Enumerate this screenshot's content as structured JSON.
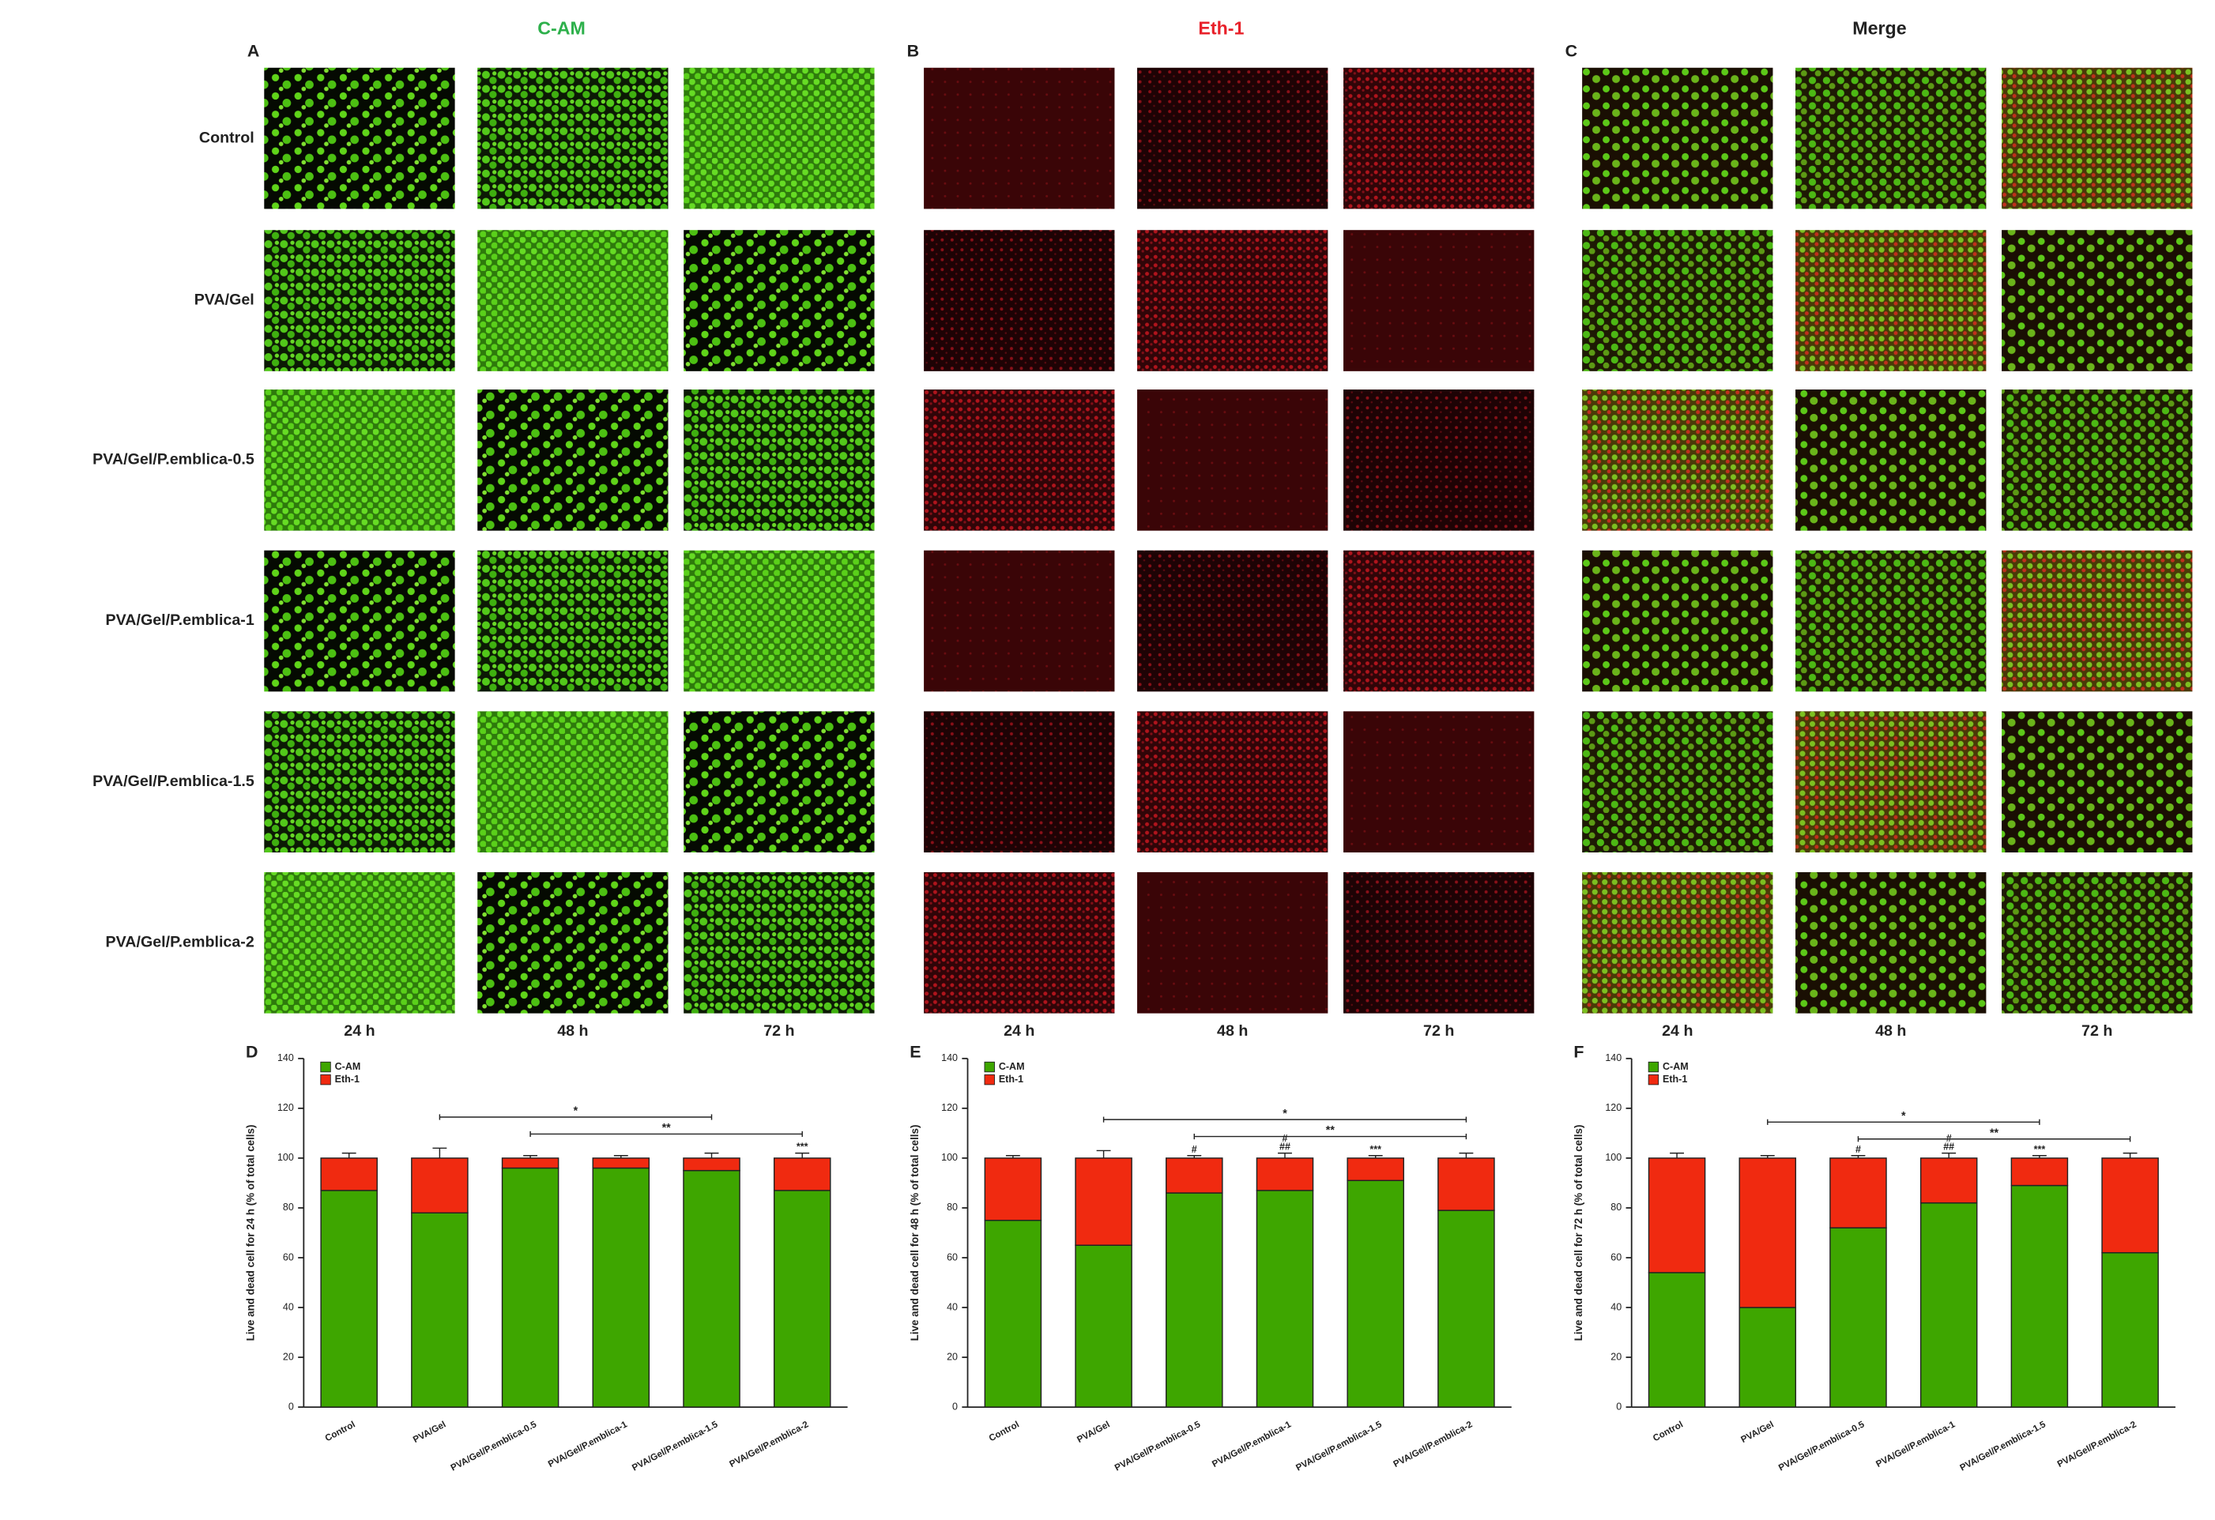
{
  "micrographs": {
    "panel_letters": [
      "A",
      "B",
      "C"
    ],
    "stains": [
      "C-AM",
      "Eth-1",
      "Merge"
    ],
    "rows": [
      "Control",
      "PVA/Gel",
      "PVA/Gel/P.emblica-0.5",
      "PVA/Gel/P.emblica-1",
      "PVA/Gel/P.emblica-1.5",
      "PVA/Gel/P.emblica-2"
    ],
    "times": [
      "24 h",
      "48 h",
      "72 h"
    ]
  },
  "chart_data": [
    {
      "type": "bar",
      "stacked": true,
      "panel_letter": "D",
      "ylabel": "Live and dead cell for 24 h (% of total cells)",
      "categories": [
        "Control",
        "PVA/Gel",
        "PVA/Gel/P.emblica-0.5",
        "PVA/Gel/P.emblica-1",
        "PVA/Gel/P.emblica-1.5",
        "PVA/Gel/P.emblica-2"
      ],
      "series": [
        {
          "name": "C-AM",
          "color": "#3ea600",
          "values": [
            87,
            78,
            96,
            96,
            95,
            87
          ],
          "errors": [
            2,
            4,
            1,
            1,
            1,
            2
          ]
        },
        {
          "name": "Eth-1",
          "color": "#f02a10",
          "values": [
            13,
            22,
            4,
            4,
            5,
            13
          ],
          "errors": [
            2,
            4,
            1,
            1,
            2,
            2
          ]
        }
      ],
      "ylim": [
        0,
        140
      ],
      "yticks": [
        0,
        20,
        40,
        60,
        80,
        100,
        120,
        140
      ],
      "legend": "upper left",
      "annotations": [
        {
          "text": "*",
          "from": "PVA/Gel",
          "to": "PVA/Gel/P.emblica-1.5"
        },
        {
          "text": "**",
          "from": "PVA/Gel/P.emblica-0.5",
          "to": "PVA/Gel/P.emblica-2"
        },
        {
          "text": "***",
          "at": "PVA/Gel/P.emblica-2"
        }
      ]
    },
    {
      "type": "bar",
      "stacked": true,
      "panel_letter": "E",
      "ylabel": "Live and dead cell for 48 h (% of total cells)",
      "categories": [
        "Control",
        "PVA/Gel",
        "PVA/Gel/P.emblica-0.5",
        "PVA/Gel/P.emblica-1",
        "PVA/Gel/P.emblica-1.5",
        "PVA/Gel/P.emblica-2"
      ],
      "series": [
        {
          "name": "C-AM",
          "color": "#3ea600",
          "values": [
            75,
            65,
            86,
            87,
            91,
            79
          ],
          "errors": [
            1,
            3,
            1,
            2,
            1,
            2
          ]
        },
        {
          "name": "Eth-1",
          "color": "#f02a10",
          "values": [
            25,
            35,
            14,
            13,
            9,
            21
          ],
          "errors": [
            1,
            3,
            1,
            2,
            1,
            2
          ]
        }
      ],
      "ylim": [
        0,
        140
      ],
      "yticks": [
        0,
        20,
        40,
        60,
        80,
        100,
        120,
        140
      ],
      "legend": "upper left",
      "annotations": [
        {
          "text": "*",
          "from": "PVA/Gel",
          "to": "PVA/Gel/P.emblica-2"
        },
        {
          "text": "**",
          "from": "PVA/Gel/P.emblica-0.5",
          "to": "PVA/Gel/P.emblica-2"
        },
        {
          "text": "#",
          "at": "PVA/Gel/P.emblica-0.5"
        },
        {
          "text": "##",
          "at": "PVA/Gel/P.emblica-1"
        },
        {
          "text": "#",
          "at": "PVA/Gel/P.emblica-1"
        },
        {
          "text": "***",
          "at": "PVA/Gel/P.emblica-1.5"
        }
      ]
    },
    {
      "type": "bar",
      "stacked": true,
      "panel_letter": "F",
      "ylabel": "Live and dead cell for 72 h (% of total cells)",
      "categories": [
        "Control",
        "PVA/Gel",
        "PVA/Gel/P.emblica-0.5",
        "PVA/Gel/P.emblica-1",
        "PVA/Gel/P.emblica-1.5",
        "PVA/Gel/P.emblica-2"
      ],
      "series": [
        {
          "name": "C-AM",
          "color": "#3ea600",
          "values": [
            54,
            40,
            72,
            82,
            89,
            62
          ],
          "errors": [
            2,
            1,
            1,
            2,
            1,
            2
          ]
        },
        {
          "name": "Eth-1",
          "color": "#f02a10",
          "values": [
            46,
            60,
            28,
            18,
            11,
            38
          ],
          "errors": [
            2,
            1,
            1,
            2,
            1,
            2
          ]
        }
      ],
      "ylim": [
        0,
        140
      ],
      "yticks": [
        0,
        20,
        40,
        60,
        80,
        100,
        120,
        140
      ],
      "legend": "upper left",
      "annotations": [
        {
          "text": "*",
          "from": "PVA/Gel",
          "to": "PVA/Gel/P.emblica-1.5"
        },
        {
          "text": "**",
          "from": "PVA/Gel/P.emblica-0.5",
          "to": "PVA/Gel/P.emblica-2"
        },
        {
          "text": "#",
          "at": "PVA/Gel/P.emblica-0.5"
        },
        {
          "text": "##",
          "at": "PVA/Gel/P.emblica-1"
        },
        {
          "text": "#",
          "at": "PVA/Gel/P.emblica-1"
        },
        {
          "text": "***",
          "at": "PVA/Gel/P.emblica-1.5"
        }
      ]
    }
  ]
}
